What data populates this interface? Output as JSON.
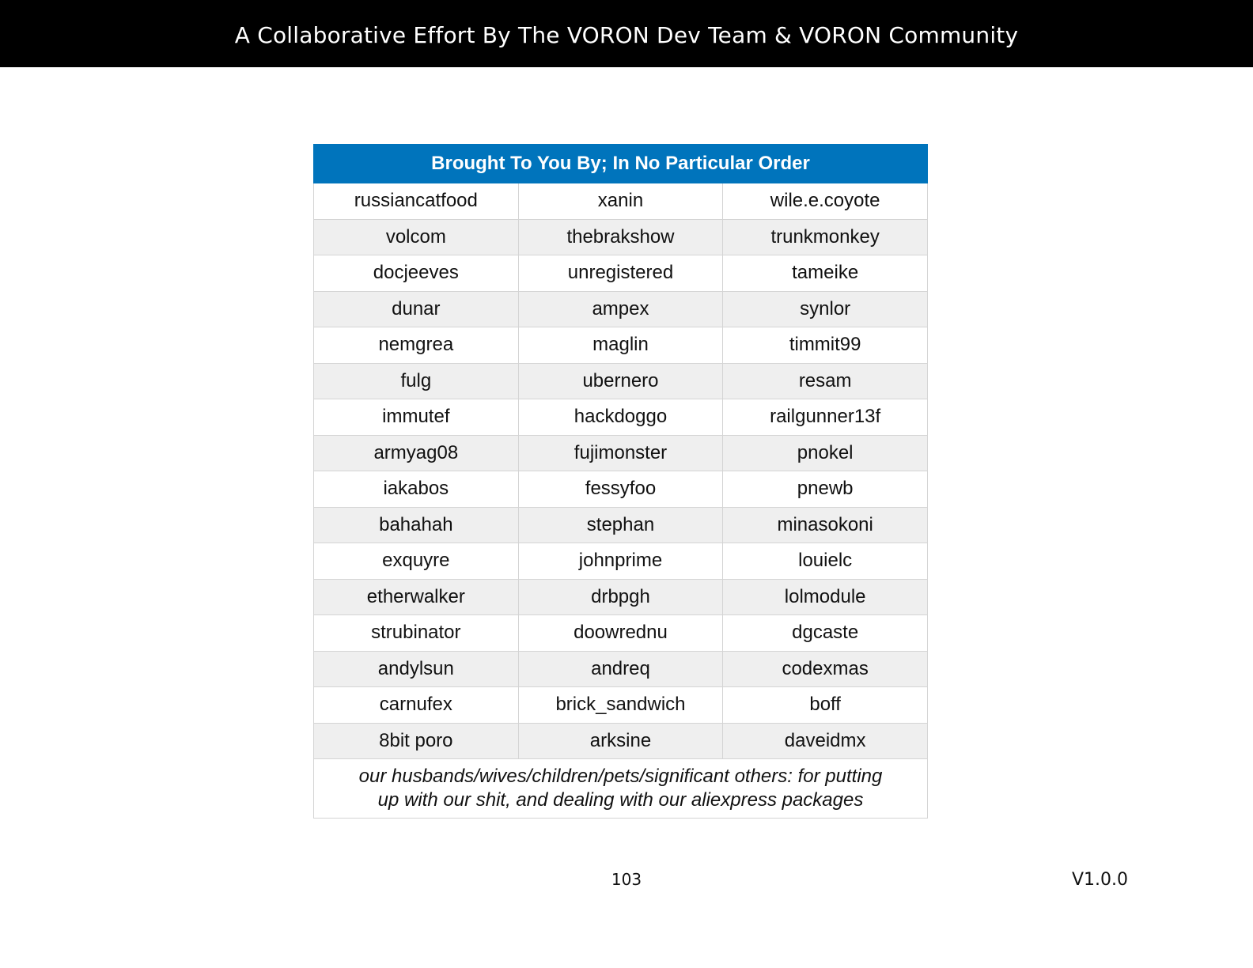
{
  "header": {
    "banner_text": "A Collaborative Effort By The VORON Dev Team & VORON Community"
  },
  "credits_table": {
    "title": "Brought To You By; In No Particular Order",
    "rows": [
      [
        "russiancatfood",
        "xanin",
        "wile.e.coyote"
      ],
      [
        "volcom",
        "thebrakshow",
        "trunkmonkey"
      ],
      [
        "docjeeves",
        "unregistered",
        "tameike"
      ],
      [
        "dunar",
        "ampex",
        "synlor"
      ],
      [
        "nemgrea",
        "maglin",
        "timmit99"
      ],
      [
        "fulg",
        "ubernero",
        "resam"
      ],
      [
        "immutef",
        "hackdoggo",
        "railgunner13f"
      ],
      [
        "armyag08",
        "fujimonster",
        "pnokel"
      ],
      [
        "iakabos",
        "fessyfoo",
        "pnewb"
      ],
      [
        "bahahah",
        "stephan",
        "minasokoni"
      ],
      [
        "exquyre",
        "johnprime",
        "louielc"
      ],
      [
        "etherwalker",
        "drbpgh",
        "lolmodule"
      ],
      [
        "strubinator",
        "doowrednu",
        "dgcaste"
      ],
      [
        "andylsun",
        "andreq",
        "codexmas"
      ],
      [
        "carnufex",
        "brick_sandwich",
        "boff"
      ],
      [
        "8bit poro",
        "arksine",
        "daveidmx"
      ]
    ],
    "thanks_line_1": "our husbands/wives/children/pets/significant others: for putting",
    "thanks_line_2": "up with our shit, and dealing with our aliexpress packages"
  },
  "footer": {
    "page_number": "103",
    "version": "V1.0.0"
  },
  "colors": {
    "banner_bg": "#000000",
    "table_header_bg": "#0074bc",
    "row_alt_bg": "#efefef"
  }
}
